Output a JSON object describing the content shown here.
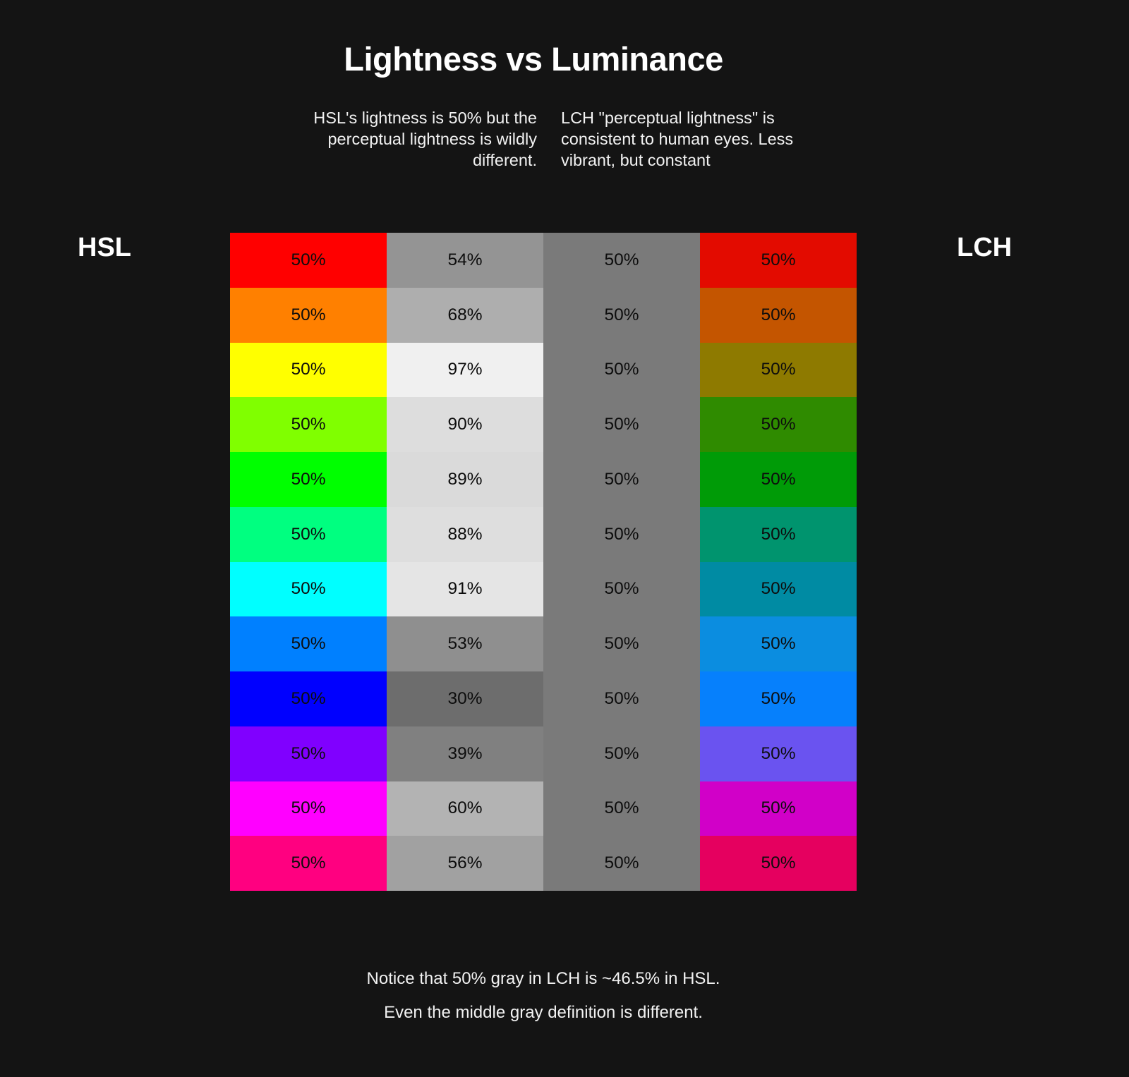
{
  "title": "Lightness vs Luminance",
  "intro": {
    "left_lines": [
      "HSL's lightness is 50% but the",
      "perceptual lightness is wildly",
      "different."
    ],
    "right_lines": [
      "LCH \"perceptual lightness\" is",
      "consistent to human eyes. Less",
      "vibrant, but constant"
    ]
  },
  "side_labels": {
    "left": "HSL",
    "right": "LCH"
  },
  "footer_lines": [
    "Notice that 50% gray in LCH is ~46.5% in HSL.",
    "Even the middle gray definition is different."
  ],
  "colors": {
    "background": "#141414",
    "heading_text": "#ffffff",
    "body_text": "#f2f2f2",
    "swatch_text": "#0d0d0d",
    "lch_middle_gray": "#7a7a7a"
  },
  "grid": {
    "columns": [
      "hsl-color",
      "luminance-gray",
      "lch-gray",
      "lch-color"
    ],
    "rows": [
      {
        "name": "red",
        "cells": [
          {
            "color": "#ff0000",
            "label": "50%"
          },
          {
            "color": "#949494",
            "label": "54%"
          },
          {
            "color": "#7a7a7a",
            "label": "50%"
          },
          {
            "color": "#e30b00",
            "label": "50%"
          }
        ]
      },
      {
        "name": "orange",
        "cells": [
          {
            "color": "#ff8000",
            "label": "50%"
          },
          {
            "color": "#aeaeae",
            "label": "68%"
          },
          {
            "color": "#7a7a7a",
            "label": "50%"
          },
          {
            "color": "#c45500",
            "label": "50%"
          }
        ]
      },
      {
        "name": "yellow",
        "cells": [
          {
            "color": "#ffff00",
            "label": "50%"
          },
          {
            "color": "#f0f0f0",
            "label": "97%"
          },
          {
            "color": "#7a7a7a",
            "label": "50%"
          },
          {
            "color": "#8e7a00",
            "label": "50%"
          }
        ]
      },
      {
        "name": "chartreuse",
        "cells": [
          {
            "color": "#80ff00",
            "label": "50%"
          },
          {
            "color": "#dddddd",
            "label": "90%"
          },
          {
            "color": "#7a7a7a",
            "label": "50%"
          },
          {
            "color": "#2f8b00",
            "label": "50%"
          }
        ]
      },
      {
        "name": "green",
        "cells": [
          {
            "color": "#00ff00",
            "label": "50%"
          },
          {
            "color": "#dadada",
            "label": "89%"
          },
          {
            "color": "#7a7a7a",
            "label": "50%"
          },
          {
            "color": "#009b07",
            "label": "50%"
          }
        ]
      },
      {
        "name": "spring-green",
        "cells": [
          {
            "color": "#00ff80",
            "label": "50%"
          },
          {
            "color": "#dedede",
            "label": "88%"
          },
          {
            "color": "#7a7a7a",
            "label": "50%"
          },
          {
            "color": "#00946e",
            "label": "50%"
          }
        ]
      },
      {
        "name": "cyan",
        "cells": [
          {
            "color": "#00ffff",
            "label": "50%"
          },
          {
            "color": "#e5e5e5",
            "label": "91%"
          },
          {
            "color": "#7a7a7a",
            "label": "50%"
          },
          {
            "color": "#008ba3",
            "label": "50%"
          }
        ]
      },
      {
        "name": "azure",
        "cells": [
          {
            "color": "#0080ff",
            "label": "50%"
          },
          {
            "color": "#8f8f8f",
            "label": "53%"
          },
          {
            "color": "#7a7a7a",
            "label": "50%"
          },
          {
            "color": "#0b8de0",
            "label": "50%"
          }
        ]
      },
      {
        "name": "blue",
        "cells": [
          {
            "color": "#0000ff",
            "label": "50%"
          },
          {
            "color": "#6d6d6d",
            "label": "30%"
          },
          {
            "color": "#7a7a7a",
            "label": "50%"
          },
          {
            "color": "#0680fc",
            "label": "50%"
          }
        ]
      },
      {
        "name": "violet",
        "cells": [
          {
            "color": "#8000ff",
            "label": "50%"
          },
          {
            "color": "#808080",
            "label": "39%"
          },
          {
            "color": "#7a7a7a",
            "label": "50%"
          },
          {
            "color": "#6a53f0",
            "label": "50%"
          }
        ]
      },
      {
        "name": "magenta",
        "cells": [
          {
            "color": "#ff00ff",
            "label": "50%"
          },
          {
            "color": "#b3b3b3",
            "label": "60%"
          },
          {
            "color": "#7a7a7a",
            "label": "50%"
          },
          {
            "color": "#d100c8",
            "label": "50%"
          }
        ]
      },
      {
        "name": "rose",
        "cells": [
          {
            "color": "#ff0080",
            "label": "50%"
          },
          {
            "color": "#a1a1a1",
            "label": "56%"
          },
          {
            "color": "#7a7a7a",
            "label": "50%"
          },
          {
            "color": "#e5005f",
            "label": "50%"
          }
        ]
      }
    ]
  }
}
